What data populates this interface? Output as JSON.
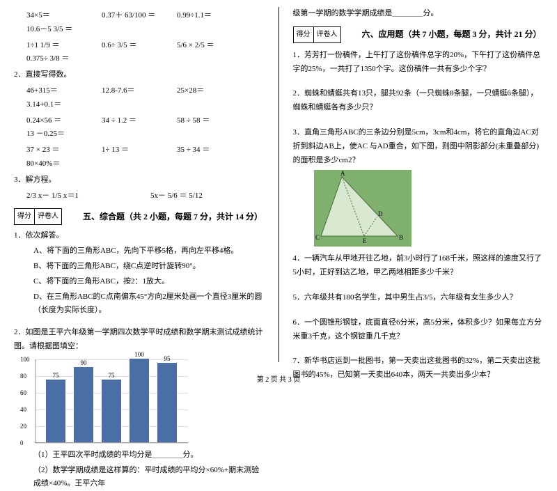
{
  "scorebox": {
    "label1": "得分",
    "label2": "评卷人"
  },
  "footer": "第 2 页 共 3 页",
  "left": {
    "eq_row1": [
      "34×5＝",
      "0.37＋ 63/100 ＝",
      "0.99÷1.1＝",
      "10.6－5 3/5 ＝"
    ],
    "eq_row2": [
      "1÷1 1/9 ＝",
      "0.6÷ 3/5 ＝",
      "5/6 × 2/5 ＝",
      "0.375÷ 3/8 ＝"
    ],
    "q2_title": "2．直接写得数。",
    "q2_rows": [
      [
        "46+315＝",
        "12.8-7.6＝",
        "25×28＝",
        "3.14+0.1＝"
      ],
      [
        "0.24×56 ＝",
        "34 ÷ 1.2 ＝",
        "58 ÷ 58 ＝",
        "13 －0.25＝"
      ],
      [
        "37 × 23 ＝",
        "1÷ 13 ＝",
        "35 ÷ 34 ＝",
        "80×40%＝"
      ]
    ],
    "q3_title": "3．解方程。",
    "q3_eq1": "2/3 x－ 1/5 x＝1",
    "q3_eq2": "5x－ 5/6 ＝ 5/12",
    "sec5_title": "五、综合题（共 2 小题，每题 7 分，共计 14 分）",
    "q5_1": "1．依次解答。",
    "q5_1a": "A、将下面的三角形ABC，先向下平移5格，再向左平移4格。",
    "q5_1b": "B、将下面的三角形ABC，绕C点逆时针旋转90°。",
    "q5_1c": "C、将下面的三角形ABC，按2：1放大。",
    "q5_1d": "D、在三角形ABC的C点南偏东45°方向2厘米处画一个直径3厘米的圆（长度为实际长度）。",
    "q5_2": "2．如图是王平六年级第一学期四次数学平时成绩和数学期末测试成绩统计图。请根据图填空：",
    "chart": {
      "type": "bar",
      "ylim": [
        0,
        100
      ],
      "ytick_step": 20,
      "bars": [
        {
          "label": "75",
          "value": 75,
          "color": "#4a6fa5"
        },
        {
          "label": "90",
          "value": 90,
          "color": "#4a6fa5"
        },
        {
          "label": "75",
          "value": 75,
          "color": "#4a6fa5"
        },
        {
          "label": "100",
          "value": 100,
          "color": "#4a6fa5"
        },
        {
          "label": "95",
          "value": 95,
          "color": "#4a6fa5"
        }
      ],
      "grid_color": "#dddddd",
      "axis_color": "#999999"
    },
    "q5_2_sub1": "（1）王平四次平时成绩的平均分是＿＿＿＿分。",
    "q5_2_sub2": "（2）数学学期成绩是这样算的：平时成绩的平均分×60%+期末测验成绩×40%。王平六年"
  },
  "right": {
    "cont": "级第一学期的数学学期成绩是＿＿＿＿分。",
    "sec6_title": "六、应用题（共 7 小题，每题 3 分，共计 21 分）",
    "q1": "1．芳芳打一份稿件，上午打了这份稿件总字的20%，下午打了这份稿件总字的25%，一共打了1350个字。这份稿件一共有多少个字？",
    "q2": "2．蜘蛛和蜻蜓共有13只，腿共92条（一只蜘蛛8条腿，一只蜻蜓6条腿），蜘蛛和蜻蜓各有多少只？",
    "q3": "3．直角三角形ABC的三条边分别是5cm，3cm和4cm，将它的直角边AC对折到斜边AB上，使AC 与AD重合，如下图，则图中阴影部分(未重叠部分)的面积是多少cm2？",
    "triangle": {
      "bg_color": "#7fb06e",
      "fill_color": "#d9e8d0",
      "line_color": "#4a6b3a",
      "labels": {
        "A": "A",
        "B": "B",
        "C": "C",
        "D": "D",
        "E": "E"
      }
    },
    "q4": "4．一辆汽车从甲地开往乙地，前3小时行了168千米，照这样的速度又行了5小时，正好到达乙地，甲乙两地相距多少千米？",
    "q5": "5．六年级共有180名学生，其中男生占3/5，六年级有女生多少人？",
    "q6": "6．一个圆锥形钢锭，底面直径6分米，高5分米，体积多少？如果每立方分米重3千克，这个钢锭重几千克？",
    "q7": "7．新华书店运到一批图书，第一天卖出这批图书的32%，第二天卖出这批图书的45%，已知第一天卖出640本，两天一共卖出多少本？"
  }
}
